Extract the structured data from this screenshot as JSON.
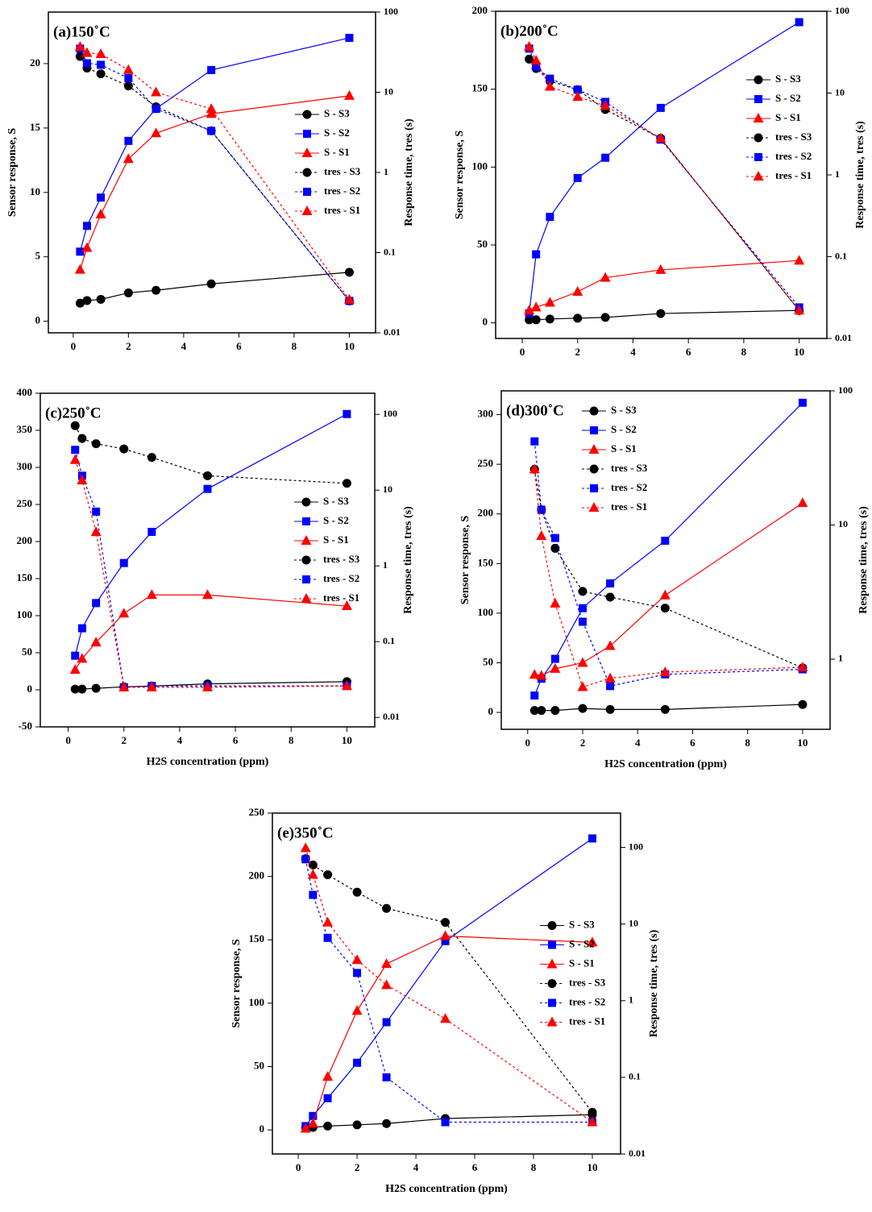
{
  "chart_data": [
    {
      "type": "line",
      "title": "(a)150˚C",
      "ylabel": "Sensor response, S",
      "y2label": "Response time, tres (s)",
      "x": [
        0.25,
        0.5,
        1,
        2,
        3,
        5,
        10
      ],
      "xlim": [
        -0.9,
        10.95
      ],
      "xticks": [
        0,
        2,
        4,
        6,
        8,
        10
      ],
      "ylim": [
        -0.9,
        24
      ],
      "yticks": [
        0,
        5,
        10,
        15,
        20
      ],
      "y2lim": [
        0.01,
        100
      ],
      "y2ticks": [
        0.01,
        0.1,
        1,
        10,
        100
      ],
      "y2log": true,
      "legend": "center right",
      "series": [
        {
          "name": "S - S3",
          "color": "#000000",
          "marker": "circle",
          "style": "solid",
          "values": [
            1.4,
            1.6,
            1.7,
            2.2,
            2.4,
            2.9,
            3.8
          ]
        },
        {
          "name": "S - S2",
          "color": "#0000ff",
          "marker": "square",
          "style": "solid",
          "values": [
            5.4,
            7.4,
            9.6,
            14.0,
            16.5,
            19.5,
            22.0
          ]
        },
        {
          "name": "S - S1",
          "color": "#ff0000",
          "marker": "triangle",
          "style": "solid",
          "values": [
            4.0,
            5.7,
            8.3,
            12.6,
            14.6,
            16.1,
            17.5
          ]
        },
        {
          "name": "tres - S3",
          "color": "#000000",
          "marker": "circle",
          "style": "dotted",
          "axis": "y2",
          "values": [
            28,
            20,
            17,
            12,
            6.6,
            3.3,
            0.025
          ]
        },
        {
          "name": "tres - S2",
          "color": "#0000ff",
          "marker": "square",
          "style": "dotted",
          "axis": "y2",
          "values": [
            35,
            23,
            22,
            15,
            6.2,
            3.3,
            0.025
          ]
        },
        {
          "name": "tres - S1",
          "color": "#ff0000",
          "marker": "triangle",
          "style": "dotted",
          "axis": "y2",
          "values": [
            37,
            31,
            30,
            19,
            10,
            6.2,
            0.026
          ]
        }
      ]
    },
    {
      "type": "line",
      "title": "(b)200˚C",
      "ylabel": "Sensor response, S",
      "y2label": "Response time, tres (s)",
      "x": [
        0.25,
        0.5,
        1,
        2,
        3,
        5,
        10
      ],
      "xlim": [
        -0.96,
        11.0
      ],
      "xticks": [
        0,
        2,
        4,
        6,
        8,
        10
      ],
      "ylim": [
        -10,
        200
      ],
      "yticks": [
        0,
        50,
        100,
        150,
        200
      ],
      "y2lim": [
        0.01,
        100
      ],
      "y2ticks": [
        0.01,
        0.1,
        1,
        10,
        100
      ],
      "y2log": true,
      "legend": "upper right",
      "series": [
        {
          "name": "S - S3",
          "color": "#000000",
          "marker": "circle",
          "style": "solid",
          "values": [
            2,
            2,
            2.5,
            3,
            3.5,
            6,
            8
          ]
        },
        {
          "name": "S - S2",
          "color": "#0000ff",
          "marker": "square",
          "style": "solid",
          "values": [
            6,
            44,
            68,
            93,
            106,
            138,
            193
          ]
        },
        {
          "name": "S - S1",
          "color": "#ff0000",
          "marker": "triangle",
          "style": "solid",
          "values": [
            8,
            10,
            13,
            20,
            29,
            34,
            40
          ]
        },
        {
          "name": "tres - S3",
          "color": "#000000",
          "marker": "circle",
          "style": "dotted",
          "axis": "y2",
          "values": [
            26,
            20,
            14,
            11,
            6.3,
            2.8,
            0.022
          ]
        },
        {
          "name": "tres - S2",
          "color": "#0000ff",
          "marker": "square",
          "style": "dotted",
          "axis": "y2",
          "values": [
            35,
            21,
            15,
            11,
            7.8,
            2.7,
            0.024
          ]
        },
        {
          "name": "tres - S1",
          "color": "#ff0000",
          "marker": "triangle",
          "style": "dotted",
          "axis": "y2",
          "values": [
            37,
            25,
            12,
            9,
            7,
            2.8,
            0.022
          ]
        }
      ]
    },
    {
      "type": "line",
      "title": "(c)250˚C",
      "xlabel": "H2S concentration (ppm)",
      "y2label": "Response time, tres (s)",
      "x": [
        0.25,
        0.5,
        1,
        2,
        3,
        5,
        10
      ],
      "xlim": [
        -1.0,
        11.0
      ],
      "xticks": [
        0,
        2,
        4,
        6,
        8,
        10
      ],
      "ylim": [
        -50,
        400
      ],
      "yticks": [
        -50,
        0,
        50,
        100,
        150,
        200,
        250,
        300,
        350,
        400
      ],
      "y2lim": [
        0.0075,
        190
      ],
      "y2ticks": [
        0.01,
        0.1,
        1,
        10,
        100
      ],
      "y2log": true,
      "legend": "center right",
      "series": [
        {
          "name": "S - S3",
          "color": "#000000",
          "marker": "circle",
          "style": "solid",
          "values": [
            1,
            1,
            2,
            4,
            5,
            8,
            11
          ]
        },
        {
          "name": "S - S2",
          "color": "#0000ff",
          "marker": "square",
          "style": "solid",
          "values": [
            46,
            83,
            117,
            171,
            213,
            271,
            372
          ]
        },
        {
          "name": "S - S1",
          "color": "#ff0000",
          "marker": "triangle",
          "style": "solid",
          "values": [
            27,
            42,
            64,
            103,
            128,
            128,
            113
          ]
        },
        {
          "name": "tres - S3",
          "color": "#000000",
          "marker": "circle",
          "style": "dotted",
          "axis": "y2",
          "values": [
            71,
            48,
            41,
            35,
            27,
            15.5,
            12.3
          ]
        },
        {
          "name": "tres - S2",
          "color": "#0000ff",
          "marker": "square",
          "style": "dotted",
          "axis": "y2",
          "values": [
            34,
            15.5,
            5.2,
            0.025,
            0.026,
            0.026,
            0.026
          ]
        },
        {
          "name": "tres - S1",
          "color": "#ff0000",
          "marker": "triangle",
          "style": "dotted",
          "axis": "y2",
          "values": [
            25,
            13.5,
            2.8,
            0.025,
            0.025,
            0.025,
            0.026
          ]
        }
      ]
    },
    {
      "type": "line",
      "title": "(d)300˚C",
      "ylabel": "Sensor response, S",
      "xlabel": "H2S concentration (ppm)",
      "y2label": "Response time, tres (s)",
      "x": [
        0.25,
        0.5,
        1,
        2,
        3,
        5,
        10
      ],
      "xlim": [
        -0.96,
        11.0
      ],
      "xticks": [
        0,
        2,
        4,
        6,
        8,
        10
      ],
      "ylim": [
        -17,
        324
      ],
      "yticks": [
        0,
        50,
        100,
        150,
        200,
        250,
        300
      ],
      "y2lim": [
        0.3,
        100
      ],
      "y2ticks": [
        1,
        10,
        100
      ],
      "y2log": true,
      "legend": "upper left",
      "series": [
        {
          "name": "S - S3",
          "color": "#000000",
          "marker": "circle",
          "style": "solid",
          "values": [
            2,
            2,
            2,
            4,
            3,
            3,
            8
          ]
        },
        {
          "name": "S - S2",
          "color": "#0000ff",
          "marker": "square",
          "style": "solid",
          "values": [
            17,
            34,
            54,
            105,
            130,
            173,
            312
          ]
        },
        {
          "name": "S - S1",
          "color": "#ff0000",
          "marker": "triangle",
          "style": "solid",
          "values": [
            38,
            37,
            44,
            50,
            67,
            118,
            211
          ]
        },
        {
          "name": "tres - S3",
          "color": "#000000",
          "marker": "circle",
          "style": "dotted",
          "axis": "y2",
          "values": [
            26,
            13,
            6.7,
            3.2,
            2.9,
            2.4,
            0.86
          ]
        },
        {
          "name": "tres - S2",
          "color": "#0000ff",
          "marker": "square",
          "style": "dotted",
          "axis": "y2",
          "values": [
            42,
            13,
            8,
            1.9,
            0.63,
            0.77,
            0.84
          ]
        },
        {
          "name": "tres - S1",
          "color": "#ff0000",
          "marker": "triangle",
          "style": "dotted",
          "axis": "y2",
          "values": [
            26,
            8.3,
            2.6,
            0.62,
            0.72,
            0.8,
            0.87
          ]
        }
      ]
    },
    {
      "type": "line",
      "title": "(e)350˚C",
      "ylabel": "Sensor response, S",
      "xlabel": "H2S concentration (ppm)",
      "y2label": "Response time, tres (s)",
      "x": [
        0.25,
        0.5,
        1,
        2,
        3,
        5,
        10
      ],
      "xlim": [
        -0.88,
        10.96
      ],
      "xticks": [
        0,
        2,
        4,
        6,
        8,
        10
      ],
      "ylim": [
        -19,
        250
      ],
      "yticks": [
        0,
        50,
        100,
        150,
        200,
        250
      ],
      "y2lim": [
        0.01,
        280
      ],
      "y2ticks": [
        0.01,
        0.1,
        1,
        10,
        100
      ],
      "y2log": true,
      "legend": "center right",
      "series": [
        {
          "name": "S - S3",
          "color": "#000000",
          "marker": "circle",
          "style": "solid",
          "values": [
            2,
            2,
            3,
            4,
            5,
            9,
            12
          ]
        },
        {
          "name": "S - S2",
          "color": "#0000ff",
          "marker": "square",
          "style": "solid",
          "values": [
            3,
            11,
            25,
            53,
            85,
            149,
            230
          ]
        },
        {
          "name": "S - S1",
          "color": "#ff0000",
          "marker": "triangle",
          "style": "solid",
          "values": [
            1,
            5,
            42,
            94,
            131,
            153,
            148
          ]
        },
        {
          "name": "tres - S3",
          "color": "#000000",
          "marker": "circle",
          "style": "dotted",
          "axis": "y2",
          "values": [
            71,
            59,
            44,
            26,
            16,
            10.5,
            0.035
          ]
        },
        {
          "name": "tres - S2",
          "color": "#0000ff",
          "marker": "square",
          "style": "dotted",
          "axis": "y2",
          "values": [
            70,
            24,
            6.6,
            2.3,
            0.1,
            0.026,
            0.026
          ]
        },
        {
          "name": "tres - S1",
          "color": "#ff0000",
          "marker": "triangle",
          "style": "dotted",
          "axis": "y2",
          "values": [
            98,
            44,
            10.5,
            3.4,
            1.6,
            0.58,
            0.026
          ]
        }
      ]
    }
  ]
}
